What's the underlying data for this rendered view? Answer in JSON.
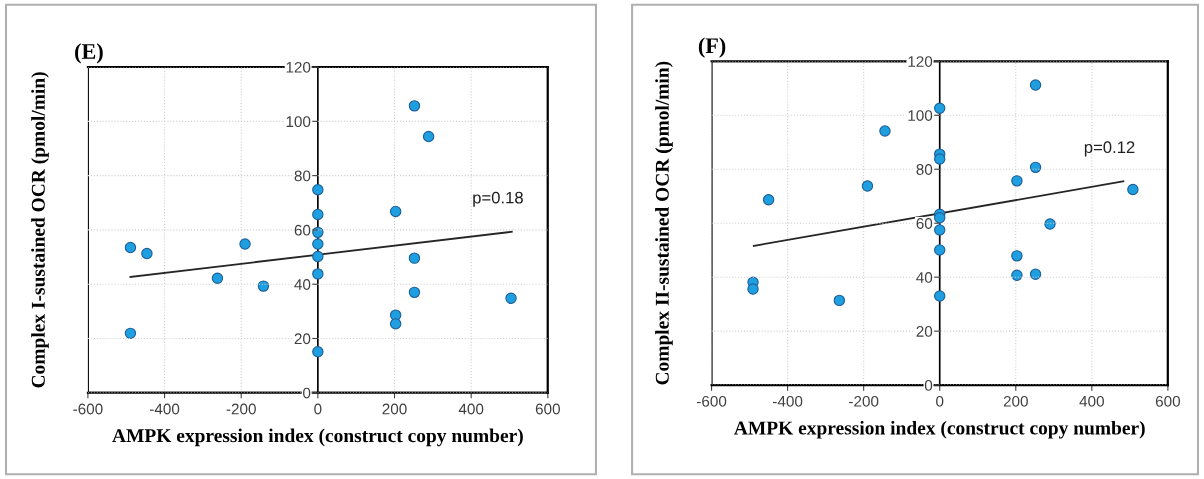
{
  "chart_data": [
    {
      "type": "scatter",
      "title": "(E)",
      "xlabel": "AMPK expression index (construct copy number)",
      "ylabel": "Complex I-sustained OCR (pmol/min)",
      "xlim": [
        -600,
        600
      ],
      "ylim": [
        0,
        120
      ],
      "xticks": [
        -600,
        -400,
        -200,
        0,
        200,
        400,
        600
      ],
      "yticks": [
        0,
        20,
        40,
        60,
        80,
        100,
        120
      ],
      "grid": true,
      "series": [
        {
          "marker": "circle",
          "color": "#1e9fe0",
          "x": [
            -489,
            -446,
            -489,
            -262,
            -190,
            -142,
            0,
            0,
            0,
            0,
            0,
            0,
            0,
            203,
            203,
            203,
            252,
            289,
            252,
            252,
            504
          ],
          "values": [
            53.5,
            51.3,
            21.9,
            42.2,
            54.8,
            39.3,
            74.8,
            65.7,
            59.1,
            54.8,
            50.2,
            43.8,
            15.1,
            66.8,
            28.6,
            25.4,
            105.7,
            94.4,
            49.6,
            37.0,
            34.8
          ]
        },
        {
          "type": "line",
          "color": "#262626",
          "x": [
            -489,
            506
          ],
          "values": [
            42.7,
            59.3
          ]
        }
      ],
      "annotations": [
        "p=0.18"
      ]
    },
    {
      "type": "scatter",
      "title": "(F)",
      "xlabel": "AMPK expression index (construct copy number)",
      "ylabel": "Complex II-sustained OCR (pmol/min)",
      "xlim": [
        -600,
        600
      ],
      "ylim": [
        0,
        120
      ],
      "xticks": [
        -600,
        -400,
        -200,
        0,
        200,
        400,
        600
      ],
      "yticks": [
        0,
        20,
        40,
        60,
        80,
        100,
        120
      ],
      "grid": true,
      "series": [
        {
          "marker": "circle",
          "color": "#1e9fe0",
          "x": [
            -491,
            -491,
            -450,
            -264,
            -190,
            -144,
            0,
            0,
            0,
            0,
            0,
            0,
            0,
            0,
            203,
            203,
            203,
            252,
            252,
            252,
            290,
            508
          ],
          "values": [
            38.1,
            35.6,
            68.7,
            31.4,
            73.8,
            94.2,
            102.6,
            85.6,
            83.8,
            63.3,
            62.0,
            57.5,
            50.1,
            33.0,
            75.7,
            47.9,
            40.7,
            111.2,
            80.7,
            41.1,
            59.7,
            72.5
          ]
        },
        {
          "type": "line",
          "color": "#262626",
          "x": [
            -489,
            483
          ],
          "values": [
            51.6,
            75.5
          ]
        }
      ],
      "annotations": [
        "p=0.12"
      ]
    }
  ]
}
